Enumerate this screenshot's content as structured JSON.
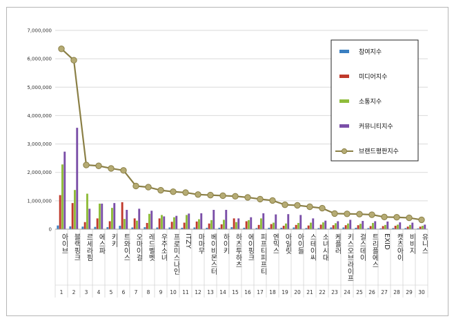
{
  "chart_data": {
    "type": "bar",
    "title": "",
    "xlabel": "",
    "ylabel": "",
    "ylim": [
      0,
      7000000
    ],
    "yticks": [
      "0",
      "1,000,000",
      "2,000,000",
      "3,000,000",
      "4,000,000",
      "5,000,000",
      "6,000,000",
      "7,000,000"
    ],
    "grid": true,
    "legend_position": "right",
    "categories": [
      "아이브",
      "블랙핑크",
      "르세라핌",
      "에스파",
      "키키",
      "트와이스",
      "오마이걸",
      "레드벨벳",
      "우주소녀",
      "프로미스나인",
      "ITZY",
      "마마무",
      "베이비몬스터",
      "하이키",
      "하츠투하츠",
      "에이핑크",
      "피프티피프티",
      "엔믹스",
      "아일릿",
      "아이들",
      "스테이씨",
      "소녀시대",
      "케플러",
      "키스오브라이프",
      "걸스데이",
      "트리플에스",
      "EXID",
      "캣츠아이",
      "비비지",
      "유니스"
    ],
    "rank_numbers": [
      "1",
      "2",
      "3",
      "4",
      "5",
      "6",
      "7",
      "8",
      "9",
      "10",
      "11",
      "12",
      "13",
      "14",
      "15",
      "16",
      "17",
      "18",
      "19",
      "20",
      "21",
      "22",
      "23",
      "24",
      "25",
      "26",
      "27",
      "28",
      "29",
      "30"
    ],
    "series": [
      {
        "name": "참여지수",
        "kind": "bar",
        "color": "#3a7fc1",
        "values": [
          130000,
          100000,
          90000,
          80000,
          70000,
          120000,
          60000,
          70000,
          60000,
          60000,
          50000,
          60000,
          50000,
          50000,
          70000,
          50000,
          40000,
          50000,
          50000,
          60000,
          40000,
          40000,
          60000,
          60000,
          50000,
          40000,
          30000,
          40000,
          40000,
          30000
        ]
      },
      {
        "name": "미디어지수",
        "kind": "bar",
        "color": "#c0392b",
        "values": [
          1200000,
          920000,
          250000,
          380000,
          280000,
          950000,
          380000,
          220000,
          380000,
          260000,
          230000,
          270000,
          200000,
          170000,
          380000,
          280000,
          150000,
          180000,
          120000,
          150000,
          130000,
          160000,
          140000,
          140000,
          140000,
          110000,
          110000,
          120000,
          90000,
          90000
        ]
      },
      {
        "name": "소통지수",
        "kind": "bar",
        "color": "#8fbc3b",
        "values": [
          2280000,
          1380000,
          1250000,
          900000,
          750000,
          360000,
          300000,
          540000,
          500000,
          420000,
          500000,
          350000,
          320000,
          330000,
          250000,
          320000,
          380000,
          230000,
          200000,
          220000,
          230000,
          240000,
          210000,
          200000,
          190000,
          220000,
          150000,
          160000,
          150000,
          120000
        ]
      },
      {
        "name": "커뮤니티지수",
        "kind": "bar",
        "color": "#7b4fa8",
        "values": [
          2730000,
          3570000,
          720000,
          900000,
          920000,
          680000,
          720000,
          650000,
          450000,
          470000,
          550000,
          560000,
          680000,
          680000,
          380000,
          420000,
          560000,
          520000,
          530000,
          500000,
          380000,
          300000,
          280000,
          330000,
          290000,
          280000,
          270000,
          240000,
          230000,
          160000
        ]
      },
      {
        "name": "브랜드평판지수",
        "kind": "line",
        "color": "#8a7f45",
        "marker_color": "#b5ab74",
        "values": [
          6350000,
          5950000,
          2260000,
          2230000,
          2140000,
          2070000,
          1520000,
          1480000,
          1370000,
          1320000,
          1290000,
          1220000,
          1200000,
          1180000,
          1160000,
          1120000,
          1060000,
          1010000,
          860000,
          840000,
          790000,
          740000,
          550000,
          540000,
          530000,
          510000,
          430000,
          420000,
          400000,
          330000
        ]
      }
    ]
  }
}
